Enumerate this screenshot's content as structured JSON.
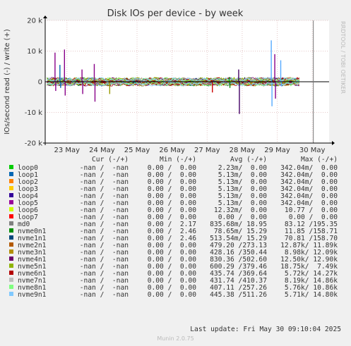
{
  "chart_data": {
    "type": "line",
    "title": "Disk IOs per device - by week",
    "ylabel": "IOs/second read (-) / write (+)",
    "side_label": "RRDTOOL / TOBI OETIKER",
    "y_ticks": [
      {
        "value": 20000,
        "label": "20 k"
      },
      {
        "value": 10000,
        "label": "10 k"
      },
      {
        "value": 0,
        "label": "0"
      },
      {
        "value": -10000,
        "label": "-10 k"
      },
      {
        "value": -20000,
        "label": "-20 k"
      }
    ],
    "ylim": [
      -20000,
      20000
    ],
    "x_ticks": [
      "23 May",
      "24 May",
      "25 May",
      "26 May",
      "27 May",
      "28 May",
      "29 May",
      "30 May"
    ],
    "x_range_days": [
      0,
      8.1
    ],
    "x_tick_days": [
      0.62,
      1.62,
      2.62,
      3.62,
      4.62,
      5.62,
      6.62,
      7.62
    ],
    "now_day": 7.65,
    "data_end_day": 7.25,
    "grid": true,
    "spikes": [
      {
        "day": 0.28,
        "write": 9500,
        "read": -3000,
        "color": "#880088"
      },
      {
        "day": 0.55,
        "write": 10500,
        "read": -4500,
        "color": "#880088"
      },
      {
        "day": 0.42,
        "write": 5500,
        "read": -2000,
        "color": "#0066b3"
      },
      {
        "day": 1.05,
        "write": 4000,
        "read": -4000,
        "color": "#880088"
      },
      {
        "day": 1.4,
        "write": 5800,
        "read": -6500,
        "color": "#880088"
      },
      {
        "day": 1.82,
        "write": 1000,
        "read": -4000,
        "color": "#999900"
      },
      {
        "day": 2.55,
        "write": 500,
        "read": -500,
        "color": "#00aa88"
      },
      {
        "day": 4.75,
        "write": 500,
        "read": -3500,
        "color": "#cc0000"
      },
      {
        "day": 5.52,
        "write": 4000,
        "read": -10500,
        "color": "#440066"
      },
      {
        "day": 5.25,
        "write": 1500,
        "read": -2000,
        "color": "#008f00"
      },
      {
        "day": 6.45,
        "write": 13500,
        "read": -8000,
        "color": "#55aaff"
      },
      {
        "day": 6.55,
        "write": 9000,
        "read": -5500,
        "color": "#880088"
      },
      {
        "day": 6.72,
        "write": 7000,
        "read": -1500,
        "color": "#55aaff"
      }
    ],
    "series_colors": [
      "#00cc00",
      "#0066b3",
      "#ff8000",
      "#ffcc00",
      "#330099",
      "#990099",
      "#ccff00",
      "#ff0000",
      "#808080",
      "#008f00",
      "#00487d",
      "#b35a00",
      "#b38f00",
      "#6b006b",
      "#8fb300",
      "#b30000",
      "#bebebe",
      "#80ff80",
      "#80c9ff"
    ]
  },
  "legend": {
    "headers": {
      "cur": "Cur (-/+)",
      "min": "Min (-/+)",
      "avg": "Avg (-/+)",
      "max": "Max (-/+)"
    },
    "rows": [
      {
        "name": "loop0",
        "color": "#00cc00",
        "cur": "-nan /  -nan",
        "min": "0.00 /  0.00",
        "avg": "2.23m/  0.00",
        "max": "342.04m/  0.00"
      },
      {
        "name": "loop1",
        "color": "#0066b3",
        "cur": "-nan /  -nan",
        "min": "0.00 /  0.00",
        "avg": "5.13m/  0.00",
        "max": "342.04m/  0.00"
      },
      {
        "name": "loop2",
        "color": "#ff8000",
        "cur": "-nan /  -nan",
        "min": "0.00 /  0.00",
        "avg": "5.13m/  0.00",
        "max": "342.04m/  0.00"
      },
      {
        "name": "loop3",
        "color": "#ffcc00",
        "cur": "-nan /  -nan",
        "min": "0.00 /  0.00",
        "avg": "5.13m/  0.00",
        "max": "342.04m/  0.00"
      },
      {
        "name": "loop4",
        "color": "#330099",
        "cur": "-nan /  -nan",
        "min": "0.00 /  0.00",
        "avg": "5.13m/  0.00",
        "max": "342.04m/  0.00"
      },
      {
        "name": "loop5",
        "color": "#990099",
        "cur": "-nan /  -nan",
        "min": "0.00 /  0.00",
        "avg": "5.13m/  0.00",
        "max": "342.04m/  0.00"
      },
      {
        "name": "loop6",
        "color": "#ccff00",
        "cur": "-nan /  -nan",
        "min": "0.00 /  0.00",
        "avg": "12.32m/  0.00",
        "max": "10.77 /  0.00"
      },
      {
        "name": "loop7",
        "color": "#ff0000",
        "cur": "-nan /  -nan",
        "min": "0.00 /  0.00",
        "avg": "0.00 /  0.00",
        "max": "0.00 /  0.00"
      },
      {
        "name": "md0",
        "color": "#808080",
        "cur": "-nan /  -nan",
        "min": "0.00 /  2.17",
        "avg": "835.68m/ 18.95",
        "max": "83.12 /195.35"
      },
      {
        "name": "nvme0n1",
        "color": "#008f00",
        "cur": "-nan /  -nan",
        "min": "0.00 /  2.46",
        "avg": "78.65m/ 15.29",
        "max": "11.85 /158.71"
      },
      {
        "name": "nvme1n1",
        "color": "#00487d",
        "cur": "-nan /  -nan",
        "min": "0.00 /  2.46",
        "avg": "513.54m/ 15.29",
        "max": "70.81 /158.70"
      },
      {
        "name": "nvme2n1",
        "color": "#b35a00",
        "cur": "-nan /  -nan",
        "min": "0.00 /  0.00",
        "avg": "479.20 /273.13",
        "max": "12.87k/ 11.89k"
      },
      {
        "name": "nvme3n1",
        "color": "#b38f00",
        "cur": "-nan /  -nan",
        "min": "0.00 /  0.00",
        "avg": "428.16 /350.44",
        "max": "8.98k/ 12.09k"
      },
      {
        "name": "nvme4n1",
        "color": "#6b006b",
        "cur": "-nan /  -nan",
        "min": "0.00 /  0.00",
        "avg": "830.36 /502.60",
        "max": "12.50k/ 12.90k"
      },
      {
        "name": "nvme5n1",
        "color": "#8fb300",
        "cur": "-nan /  -nan",
        "min": "0.00 /  0.00",
        "avg": "600.29 /379.46",
        "max": "18.75k/  7.49k"
      },
      {
        "name": "nvme6n1",
        "color": "#b30000",
        "cur": "-nan /  -nan",
        "min": "0.00 /  0.00",
        "avg": "435.74 /369.64",
        "max": "5.72k/ 14.27k"
      },
      {
        "name": "nvme7n1",
        "color": "#bebebe",
        "cur": "-nan /  -nan",
        "min": "0.00 /  0.00",
        "avg": "431.74 /410.37",
        "max": "8.19k/ 14.86k"
      },
      {
        "name": "nvme8n1",
        "color": "#80ff80",
        "cur": "-nan /  -nan",
        "min": "0.00 /  0.00",
        "avg": "407.11 /257.26",
        "max": "5.76k/ 10.86k"
      },
      {
        "name": "nvme9n1",
        "color": "#80c9ff",
        "cur": "-nan /  -nan",
        "min": "0.00 /  0.00",
        "avg": "445.38 /511.26",
        "max": "5.71k/ 14.80k"
      }
    ]
  },
  "footer": {
    "last_update": "Last update: Fri May 30 09:10:04 2025",
    "version": "Munin 2.0.75"
  }
}
